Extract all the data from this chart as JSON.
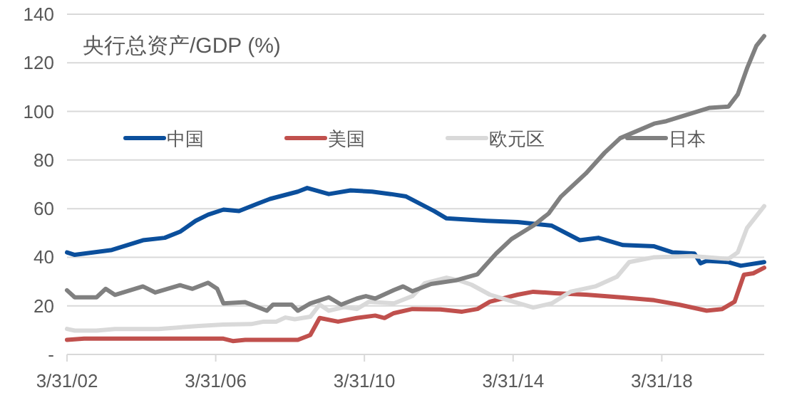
{
  "chart_data": {
    "type": "line",
    "title": "央行总资产/GDP (%)",
    "legend": "top",
    "grid": "y",
    "line_style": "solid",
    "marker": "none",
    "xlim": [
      "2002-03-31",
      "2020-12-31"
    ],
    "xticks": [
      {
        "value": "2002-03-31",
        "label": "3/31/02"
      },
      {
        "value": "2006-03-31",
        "label": "3/31/06"
      },
      {
        "value": "2010-03-31",
        "label": "3/31/10"
      },
      {
        "value": "2014-03-31",
        "label": "3/31/14"
      },
      {
        "value": "2018-03-31",
        "label": "3/31/18"
      }
    ],
    "ylim": [
      0,
      140
    ],
    "yticks": [
      {
        "value": 0,
        "label": "-"
      },
      20,
      40,
      60,
      80,
      100,
      120,
      140
    ],
    "series": [
      {
        "name": "中国",
        "color": "#0b4f9c",
        "x": [
          "2002-03-31",
          "2002-06",
          "2003-06",
          "2004-04",
          "2004-11",
          "2005-04",
          "2005-09",
          "2006-01",
          "2006-06",
          "2006-11",
          "2007-05",
          "2007-09",
          "2008-06",
          "2008-09",
          "2009-04",
          "2009-11",
          "2010-06",
          "2010-12",
          "2011-05",
          "2012-02",
          "2012-06",
          "2013-07",
          "2014-05",
          "2015-04",
          "2016-01",
          "2016-07",
          "2017-03",
          "2018-01",
          "2018-07",
          "2019-02",
          "2019-04",
          "2019-06",
          "2020-01",
          "2020-05",
          "2020-12-31"
        ],
        "values": [
          42,
          41,
          43,
          47,
          48,
          50.5,
          55,
          57.5,
          59.6,
          59,
          62,
          64,
          67,
          68.5,
          66,
          67.5,
          67,
          66,
          65,
          59,
          56,
          55,
          54.5,
          53,
          47,
          48,
          45,
          44.5,
          42,
          41.5,
          37.5,
          38.5,
          38,
          36.5,
          38
        ]
      },
      {
        "name": "美国",
        "color": "#c0504d",
        "x": [
          "2002-03-31",
          "2002-09",
          "2006-06",
          "2006-09",
          "2007-01",
          "2008-06",
          "2008-10",
          "2009-01",
          "2009-07",
          "2010-01",
          "2010-07",
          "2010-10",
          "2011-01",
          "2011-07",
          "2012-04",
          "2012-11",
          "2013-04",
          "2013-08",
          "2014-05",
          "2014-10",
          "2015-05",
          "2016-03",
          "2017-03",
          "2018-01",
          "2018-09",
          "2019-06",
          "2019-11",
          "2020-03",
          "2020-06",
          "2020-09",
          "2020-12-31"
        ],
        "values": [
          6,
          6.5,
          6.5,
          5.5,
          6,
          6,
          8,
          15,
          13.5,
          15,
          16,
          15,
          17,
          18.7,
          18.5,
          17.6,
          18.7,
          21.7,
          24.6,
          25.8,
          25.2,
          24.6,
          23.4,
          22.3,
          20.5,
          18,
          18.7,
          21.7,
          32.8,
          33.4,
          35.7
        ]
      },
      {
        "name": "欧元区",
        "color": "#d9d9d9",
        "x": [
          "2002-03-31",
          "2002-06",
          "2003-01",
          "2003-07",
          "2004-09",
          "2005-10",
          "2006-06",
          "2007-03",
          "2007-07",
          "2007-11",
          "2008-02",
          "2008-05",
          "2008-10",
          "2009-01",
          "2009-04",
          "2009-09",
          "2010-01",
          "2010-05",
          "2011-01",
          "2011-07",
          "2011-11",
          "2012-06",
          "2012-10",
          "2013-02",
          "2013-08",
          "2014-02",
          "2014-10",
          "2015-04",
          "2015-10",
          "2016-06",
          "2017-01",
          "2017-05",
          "2018-01",
          "2019-01",
          "2020-01",
          "2020-04",
          "2020-07",
          "2020-12-31"
        ],
        "values": [
          10.5,
          9.8,
          9.8,
          10.5,
          10.5,
          11.7,
          12.3,
          12.5,
          13.5,
          13.5,
          15.2,
          14.5,
          15.5,
          20.5,
          18,
          19.5,
          18.7,
          21.7,
          21,
          24,
          29.3,
          31.6,
          30.5,
          28.7,
          24.6,
          22.3,
          19.3,
          21,
          25.8,
          28,
          32,
          38,
          40,
          40.5,
          39.3,
          42,
          52,
          61
        ]
      },
      {
        "name": "日本",
        "color": "#808080",
        "x": [
          "2002-03-31",
          "2002-06",
          "2003-01",
          "2003-04",
          "2003-07",
          "2004-04",
          "2004-08",
          "2005-04",
          "2005-08",
          "2006-01",
          "2006-04",
          "2006-06",
          "2007-01",
          "2007-08",
          "2007-10",
          "2008-04",
          "2008-06",
          "2008-10",
          "2009-04",
          "2009-08",
          "2010-01",
          "2010-04",
          "2010-07",
          "2011-01",
          "2011-04",
          "2011-07",
          "2012-01",
          "2012-09",
          "2013-04",
          "2013-10",
          "2014-03",
          "2014-10",
          "2015-03",
          "2015-07",
          "2016-03",
          "2016-09",
          "2017-02",
          "2018-01",
          "2018-05",
          "2019-07",
          "2020-01",
          "2020-04",
          "2020-07",
          "2020-10",
          "2020-12-31"
        ],
        "values": [
          26.4,
          23.5,
          23.5,
          27,
          24.5,
          28,
          25.5,
          28.5,
          27,
          29.5,
          27,
          21,
          21.5,
          18,
          20.5,
          20.5,
          18,
          21,
          23.5,
          20.5,
          23,
          24,
          23,
          26.5,
          28,
          26,
          29,
          30.5,
          33,
          41.5,
          47.5,
          53,
          58,
          65,
          74.5,
          83,
          89,
          95,
          96,
          101.5,
          102,
          107,
          117.7,
          127,
          131
        ]
      }
    ]
  }
}
